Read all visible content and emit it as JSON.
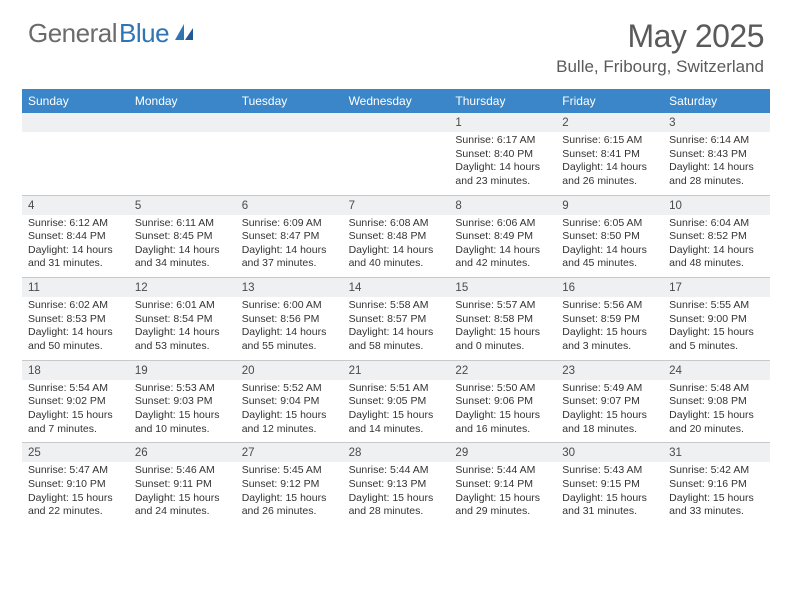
{
  "logo": {
    "part1": "General",
    "part2": "Blue"
  },
  "header": {
    "month_title": "May 2025",
    "location": "Bulle, Fribourg, Switzerland"
  },
  "colors": {
    "header_bg": "#3a86c8",
    "header_text": "#ffffff",
    "daynum_bg": "#eef0f1",
    "text": "#333333",
    "divider": "#c9c9c9",
    "logo_gray": "#6b6b6b",
    "logo_blue": "#2e75b6",
    "title_color": "#5a5a5a"
  },
  "day_names": [
    "Sunday",
    "Monday",
    "Tuesday",
    "Wednesday",
    "Thursday",
    "Friday",
    "Saturday"
  ],
  "weeks": [
    [
      {
        "n": "",
        "sr": "",
        "ss": "",
        "dl1": "",
        "dl2": ""
      },
      {
        "n": "",
        "sr": "",
        "ss": "",
        "dl1": "",
        "dl2": ""
      },
      {
        "n": "",
        "sr": "",
        "ss": "",
        "dl1": "",
        "dl2": ""
      },
      {
        "n": "",
        "sr": "",
        "ss": "",
        "dl1": "",
        "dl2": ""
      },
      {
        "n": "1",
        "sr": "Sunrise: 6:17 AM",
        "ss": "Sunset: 8:40 PM",
        "dl1": "Daylight: 14 hours",
        "dl2": "and 23 minutes."
      },
      {
        "n": "2",
        "sr": "Sunrise: 6:15 AM",
        "ss": "Sunset: 8:41 PM",
        "dl1": "Daylight: 14 hours",
        "dl2": "and 26 minutes."
      },
      {
        "n": "3",
        "sr": "Sunrise: 6:14 AM",
        "ss": "Sunset: 8:43 PM",
        "dl1": "Daylight: 14 hours",
        "dl2": "and 28 minutes."
      }
    ],
    [
      {
        "n": "4",
        "sr": "Sunrise: 6:12 AM",
        "ss": "Sunset: 8:44 PM",
        "dl1": "Daylight: 14 hours",
        "dl2": "and 31 minutes."
      },
      {
        "n": "5",
        "sr": "Sunrise: 6:11 AM",
        "ss": "Sunset: 8:45 PM",
        "dl1": "Daylight: 14 hours",
        "dl2": "and 34 minutes."
      },
      {
        "n": "6",
        "sr": "Sunrise: 6:09 AM",
        "ss": "Sunset: 8:47 PM",
        "dl1": "Daylight: 14 hours",
        "dl2": "and 37 minutes."
      },
      {
        "n": "7",
        "sr": "Sunrise: 6:08 AM",
        "ss": "Sunset: 8:48 PM",
        "dl1": "Daylight: 14 hours",
        "dl2": "and 40 minutes."
      },
      {
        "n": "8",
        "sr": "Sunrise: 6:06 AM",
        "ss": "Sunset: 8:49 PM",
        "dl1": "Daylight: 14 hours",
        "dl2": "and 42 minutes."
      },
      {
        "n": "9",
        "sr": "Sunrise: 6:05 AM",
        "ss": "Sunset: 8:50 PM",
        "dl1": "Daylight: 14 hours",
        "dl2": "and 45 minutes."
      },
      {
        "n": "10",
        "sr": "Sunrise: 6:04 AM",
        "ss": "Sunset: 8:52 PM",
        "dl1": "Daylight: 14 hours",
        "dl2": "and 48 minutes."
      }
    ],
    [
      {
        "n": "11",
        "sr": "Sunrise: 6:02 AM",
        "ss": "Sunset: 8:53 PM",
        "dl1": "Daylight: 14 hours",
        "dl2": "and 50 minutes."
      },
      {
        "n": "12",
        "sr": "Sunrise: 6:01 AM",
        "ss": "Sunset: 8:54 PM",
        "dl1": "Daylight: 14 hours",
        "dl2": "and 53 minutes."
      },
      {
        "n": "13",
        "sr": "Sunrise: 6:00 AM",
        "ss": "Sunset: 8:56 PM",
        "dl1": "Daylight: 14 hours",
        "dl2": "and 55 minutes."
      },
      {
        "n": "14",
        "sr": "Sunrise: 5:58 AM",
        "ss": "Sunset: 8:57 PM",
        "dl1": "Daylight: 14 hours",
        "dl2": "and 58 minutes."
      },
      {
        "n": "15",
        "sr": "Sunrise: 5:57 AM",
        "ss": "Sunset: 8:58 PM",
        "dl1": "Daylight: 15 hours",
        "dl2": "and 0 minutes."
      },
      {
        "n": "16",
        "sr": "Sunrise: 5:56 AM",
        "ss": "Sunset: 8:59 PM",
        "dl1": "Daylight: 15 hours",
        "dl2": "and 3 minutes."
      },
      {
        "n": "17",
        "sr": "Sunrise: 5:55 AM",
        "ss": "Sunset: 9:00 PM",
        "dl1": "Daylight: 15 hours",
        "dl2": "and 5 minutes."
      }
    ],
    [
      {
        "n": "18",
        "sr": "Sunrise: 5:54 AM",
        "ss": "Sunset: 9:02 PM",
        "dl1": "Daylight: 15 hours",
        "dl2": "and 7 minutes."
      },
      {
        "n": "19",
        "sr": "Sunrise: 5:53 AM",
        "ss": "Sunset: 9:03 PM",
        "dl1": "Daylight: 15 hours",
        "dl2": "and 10 minutes."
      },
      {
        "n": "20",
        "sr": "Sunrise: 5:52 AM",
        "ss": "Sunset: 9:04 PM",
        "dl1": "Daylight: 15 hours",
        "dl2": "and 12 minutes."
      },
      {
        "n": "21",
        "sr": "Sunrise: 5:51 AM",
        "ss": "Sunset: 9:05 PM",
        "dl1": "Daylight: 15 hours",
        "dl2": "and 14 minutes."
      },
      {
        "n": "22",
        "sr": "Sunrise: 5:50 AM",
        "ss": "Sunset: 9:06 PM",
        "dl1": "Daylight: 15 hours",
        "dl2": "and 16 minutes."
      },
      {
        "n": "23",
        "sr": "Sunrise: 5:49 AM",
        "ss": "Sunset: 9:07 PM",
        "dl1": "Daylight: 15 hours",
        "dl2": "and 18 minutes."
      },
      {
        "n": "24",
        "sr": "Sunrise: 5:48 AM",
        "ss": "Sunset: 9:08 PM",
        "dl1": "Daylight: 15 hours",
        "dl2": "and 20 minutes."
      }
    ],
    [
      {
        "n": "25",
        "sr": "Sunrise: 5:47 AM",
        "ss": "Sunset: 9:10 PM",
        "dl1": "Daylight: 15 hours",
        "dl2": "and 22 minutes."
      },
      {
        "n": "26",
        "sr": "Sunrise: 5:46 AM",
        "ss": "Sunset: 9:11 PM",
        "dl1": "Daylight: 15 hours",
        "dl2": "and 24 minutes."
      },
      {
        "n": "27",
        "sr": "Sunrise: 5:45 AM",
        "ss": "Sunset: 9:12 PM",
        "dl1": "Daylight: 15 hours",
        "dl2": "and 26 minutes."
      },
      {
        "n": "28",
        "sr": "Sunrise: 5:44 AM",
        "ss": "Sunset: 9:13 PM",
        "dl1": "Daylight: 15 hours",
        "dl2": "and 28 minutes."
      },
      {
        "n": "29",
        "sr": "Sunrise: 5:44 AM",
        "ss": "Sunset: 9:14 PM",
        "dl1": "Daylight: 15 hours",
        "dl2": "and 29 minutes."
      },
      {
        "n": "30",
        "sr": "Sunrise: 5:43 AM",
        "ss": "Sunset: 9:15 PM",
        "dl1": "Daylight: 15 hours",
        "dl2": "and 31 minutes."
      },
      {
        "n": "31",
        "sr": "Sunrise: 5:42 AM",
        "ss": "Sunset: 9:16 PM",
        "dl1": "Daylight: 15 hours",
        "dl2": "and 33 minutes."
      }
    ]
  ]
}
